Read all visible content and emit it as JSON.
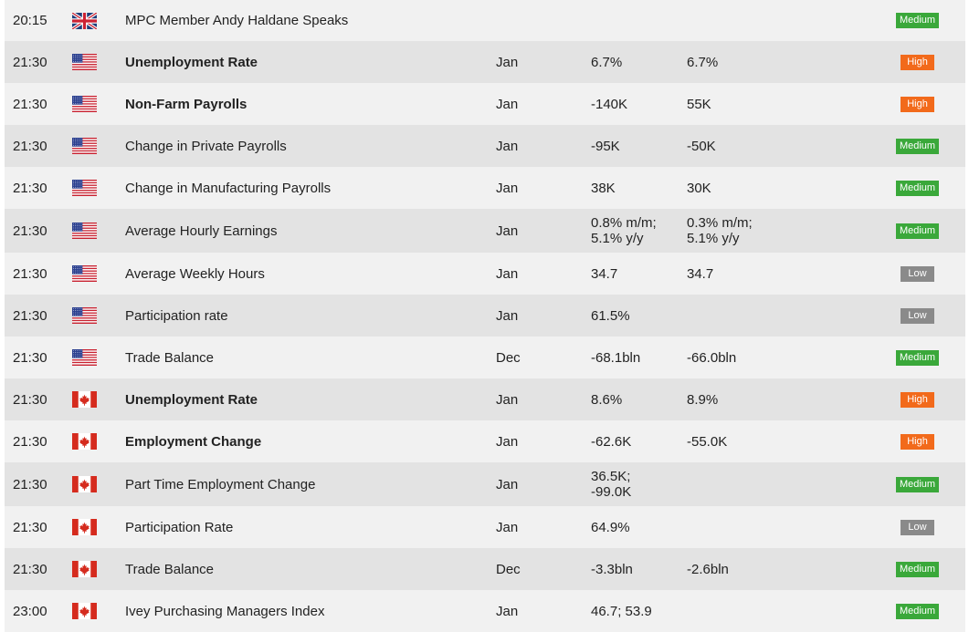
{
  "colors": {
    "row_light": "#f1f1f1",
    "row_dark": "#e3e3e3",
    "impact_medium": "#3aa83a",
    "impact_high": "#f26a1b",
    "impact_low": "#8a8a8a"
  },
  "events": [
    {
      "time": "20:15",
      "flag": "uk-flag-icon",
      "event": "MPC Member Andy Haldane Speaks",
      "period": "",
      "actual": "",
      "forecast": "",
      "impact": "Medium",
      "bold": false
    },
    {
      "time": "21:30",
      "flag": "us-flag-icon",
      "event": "Unemployment Rate",
      "period": "Jan",
      "actual": "6.7%",
      "forecast": "6.7%",
      "impact": "High",
      "bold": true
    },
    {
      "time": "21:30",
      "flag": "us-flag-icon",
      "event": "Non-Farm Payrolls",
      "period": "Jan",
      "actual": "-140K",
      "forecast": "55K",
      "impact": "High",
      "bold": true
    },
    {
      "time": "21:30",
      "flag": "us-flag-icon",
      "event": "Change in Private Payrolls",
      "period": "Jan",
      "actual": "-95K",
      "forecast": "-50K",
      "impact": "Medium",
      "bold": false
    },
    {
      "time": "21:30",
      "flag": "us-flag-icon",
      "event": "Change in Manufacturing Payrolls",
      "period": "Jan",
      "actual": "38K",
      "forecast": "30K",
      "impact": "Medium",
      "bold": false
    },
    {
      "time": "21:30",
      "flag": "us-flag-icon",
      "event": "Average Hourly Earnings",
      "period": "Jan",
      "actual": "0.8% m/m;\n5.1% y/y",
      "forecast": "0.3% m/m;\n5.1% y/y",
      "impact": "Medium",
      "bold": false
    },
    {
      "time": "21:30",
      "flag": "us-flag-icon",
      "event": "Average Weekly Hours",
      "period": "Jan",
      "actual": "34.7",
      "forecast": "34.7",
      "impact": "Low",
      "bold": false
    },
    {
      "time": "21:30",
      "flag": "us-flag-icon",
      "event": "Participation rate",
      "period": "Jan",
      "actual": "61.5%",
      "forecast": "",
      "impact": "Low",
      "bold": false
    },
    {
      "time": "21:30",
      "flag": "us-flag-icon",
      "event": "Trade Balance",
      "period": "Dec",
      "actual": "-68.1bln",
      "forecast": "-66.0bln",
      "impact": "Medium",
      "bold": false
    },
    {
      "time": "21:30",
      "flag": "ca-flag-icon",
      "event": "Unemployment Rate",
      "period": "Jan",
      "actual": "8.6%",
      "forecast": "8.9%",
      "impact": "High",
      "bold": true
    },
    {
      "time": "21:30",
      "flag": "ca-flag-icon",
      "event": "Employment Change",
      "period": "Jan",
      "actual": "-62.6K",
      "forecast": "-55.0K",
      "impact": "High",
      "bold": true
    },
    {
      "time": "21:30",
      "flag": "ca-flag-icon",
      "event": "Part Time Employment Change",
      "period": "Jan",
      "actual": "36.5K;\n-99.0K",
      "forecast": "",
      "impact": "Medium",
      "bold": false
    },
    {
      "time": "21:30",
      "flag": "ca-flag-icon",
      "event": "Participation Rate",
      "period": "Jan",
      "actual": "64.9%",
      "forecast": "",
      "impact": "Low",
      "bold": false
    },
    {
      "time": "21:30",
      "flag": "ca-flag-icon",
      "event": "Trade Balance",
      "period": "Dec",
      "actual": "-3.3bln",
      "forecast": "-2.6bln",
      "impact": "Medium",
      "bold": false
    },
    {
      "time": "23:00",
      "flag": "ca-flag-icon",
      "event": "Ivey Purchasing Managers Index",
      "period": "Jan",
      "actual": "46.7; 53.9",
      "forecast": "",
      "impact": "Medium",
      "bold": false
    }
  ]
}
